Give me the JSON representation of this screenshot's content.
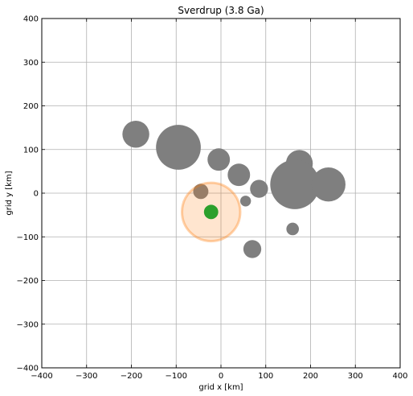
{
  "chart_data": {
    "type": "scatter",
    "title": "Sverdrup (3.8 Ga)",
    "xlabel": "grid x [km]",
    "ylabel": "grid y [km]",
    "xlim": [
      -400,
      400
    ],
    "ylim": [
      -400,
      400
    ],
    "xticks": [
      "−400",
      "−300",
      "−200",
      "−100",
      "0",
      "100",
      "200",
      "300",
      "400"
    ],
    "yticks": [
      "400",
      "300",
      "200",
      "100",
      "0",
      "−100",
      "−200",
      "−300",
      "−400"
    ],
    "xtick_values": [
      -400,
      -300,
      -200,
      -100,
      0,
      100,
      200,
      300,
      400
    ],
    "ytick_values": [
      400,
      300,
      200,
      100,
      0,
      -100,
      -200,
      -300,
      -400
    ],
    "grid": true,
    "series": [
      {
        "color": "#7f7f7f",
        "points": [
          {
            "x": -190,
            "y": 135,
            "r": 30
          },
          {
            "x": -95,
            "y": 105,
            "r": 50
          },
          {
            "x": -5,
            "y": 77,
            "r": 25
          },
          {
            "x": 40,
            "y": 42,
            "r": 25
          },
          {
            "x": 85,
            "y": 10,
            "r": 20
          },
          {
            "x": 55,
            "y": -18,
            "r": 12
          },
          {
            "x": 175,
            "y": 68,
            "r": 30
          },
          {
            "x": 165,
            "y": 20,
            "r": 55
          },
          {
            "x": 240,
            "y": 20,
            "r": 38
          },
          {
            "x": 160,
            "y": -82,
            "r": 14
          },
          {
            "x": 70,
            "y": -128,
            "r": 20
          },
          {
            "x": -45,
            "y": 4,
            "r": 17
          }
        ]
      },
      {
        "color": "#ff7f0e",
        "opacity": 0.2,
        "points": [
          {
            "x": -22,
            "y": -43,
            "r": 65
          }
        ]
      },
      {
        "color": "#2ca02c",
        "points": [
          {
            "x": -22,
            "y": -43,
            "r": 16
          }
        ]
      }
    ]
  }
}
